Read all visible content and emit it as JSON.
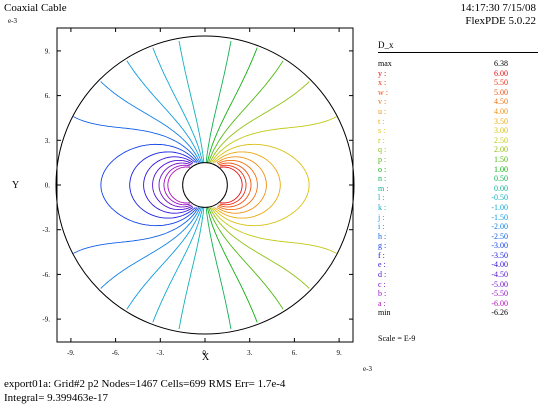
{
  "header": {
    "title": "Coaxial Cable",
    "timestamp": "14:17:30 7/15/08",
    "program": "FlexPDE 5.0.22"
  },
  "footer": {
    "run_info": "export01a:  Grid#2  p2  Nodes=1467 Cells=699 RMS Err= 1.7e-4",
    "integral": "Integral=  9.399463e-17"
  },
  "chart_data": {
    "type": "contour",
    "title": "Coaxial Cable",
    "xlabel": "X",
    "ylabel": "Y",
    "x_exponent": "e-3",
    "y_exponent": "e-3",
    "xlim": [
      -11.6,
      11.6
    ],
    "ylim": [
      -11.6,
      11.6
    ],
    "xticks": [
      -9,
      -6,
      -3,
      0,
      3,
      6,
      9
    ],
    "yticks": [
      9,
      6,
      3,
      0,
      -3,
      -6,
      -9
    ],
    "xtick_labels": [
      "-9.",
      "-6.",
      "-3.",
      "0.",
      "3.",
      "6.",
      "9."
    ],
    "ytick_labels": [
      "9.",
      "6.",
      "3.",
      "0.",
      "-3.",
      "-6.",
      "-9."
    ],
    "geometry": {
      "outer_radius": 10,
      "inner_radius": 1.5
    },
    "variable": "D_x",
    "scale": "Scale = E-9",
    "legend": [
      {
        "label": "max",
        "value": "6.38",
        "color": "#000000"
      },
      {
        "label": "y :",
        "value": "6.00",
        "color": "#e01010"
      },
      {
        "label": "x :",
        "value": "5.50",
        "color": "#e83010"
      },
      {
        "label": "w :",
        "value": "5.00",
        "color": "#ee5010"
      },
      {
        "label": "v :",
        "value": "4.50",
        "color": "#f07010"
      },
      {
        "label": "u :",
        "value": "4.00",
        "color": "#f09010"
      },
      {
        "label": "t :",
        "value": "3.50",
        "color": "#e8aa10"
      },
      {
        "label": "s :",
        "value": "3.00",
        "color": "#d8c010"
      },
      {
        "label": "r :",
        "value": "2.50",
        "color": "#c0c810"
      },
      {
        "label": "q :",
        "value": "2.00",
        "color": "#90c010"
      },
      {
        "label": "p :",
        "value": "1.50",
        "color": "#50b810"
      },
      {
        "label": "o :",
        "value": "1.00",
        "color": "#10b010"
      },
      {
        "label": "n :",
        "value": "0.50",
        "color": "#10b050"
      },
      {
        "label": "m :",
        "value": "0.00",
        "color": "#10b090"
      },
      {
        "label": "l :",
        "value": "-0.50",
        "color": "#10b0b8"
      },
      {
        "label": "k :",
        "value": "-1.00",
        "color": "#10a8d0"
      },
      {
        "label": "j :",
        "value": "-1.50",
        "color": "#1098e0"
      },
      {
        "label": "i :",
        "value": "-2.00",
        "color": "#1080e8"
      },
      {
        "label": "h :",
        "value": "-2.50",
        "color": "#1060e8"
      },
      {
        "label": "g :",
        "value": "-3.00",
        "color": "#1040e8"
      },
      {
        "label": "f :",
        "value": "-3.50",
        "color": "#1820e0"
      },
      {
        "label": "e :",
        "value": "-4.00",
        "color": "#3010d8"
      },
      {
        "label": "d :",
        "value": "-4.50",
        "color": "#5010d0"
      },
      {
        "label": "c :",
        "value": "-5.00",
        "color": "#7010c8"
      },
      {
        "label": "b :",
        "value": "-5.50",
        "color": "#9010c0"
      },
      {
        "label": "a :",
        "value": "-6.00",
        "color": "#b010b8"
      },
      {
        "label": "min",
        "value": "-6.26",
        "color": "#000000"
      }
    ]
  }
}
